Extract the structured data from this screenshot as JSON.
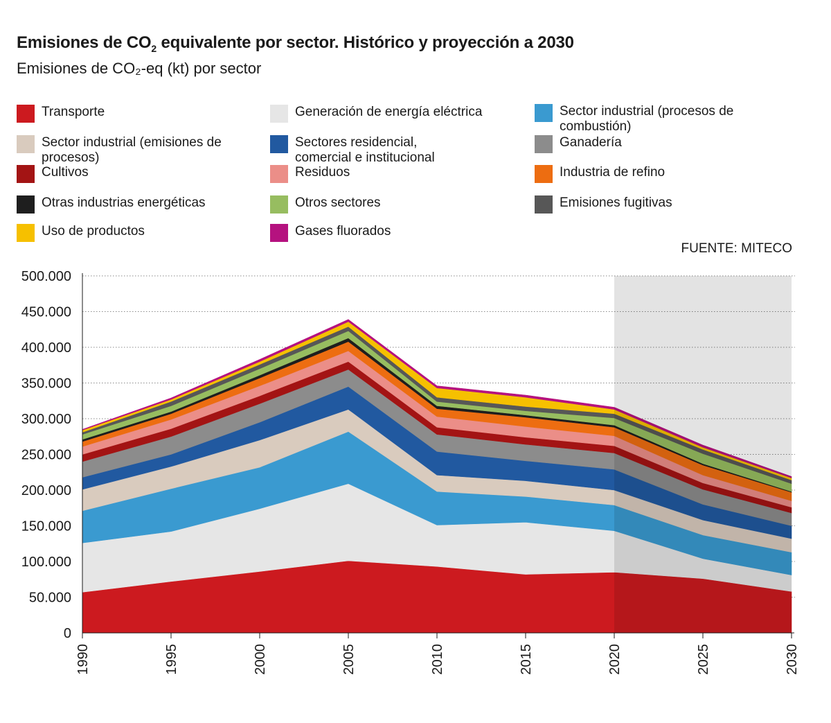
{
  "header": {
    "title_main": "Emisiones de CO",
    "title_sub": "2",
    "title_rest": " equivalente por sector. Histórico y proyección a 2030",
    "subtitle": "Emisiones de CO₂-eq (kt) por sector",
    "source": "FUENTE: MITECO"
  },
  "chart_data": {
    "type": "area",
    "stacked": true,
    "title": "Emisiones de CO2 equivalente por sector. Histórico y proyección a 2030",
    "subtitle": "Emisiones de CO₂-eq (kt) por sector",
    "x": [
      1990,
      1995,
      2000,
      2005,
      2010,
      2015,
      2020,
      2025,
      2030
    ],
    "x_tick_labels": [
      "1990",
      "1995",
      "2000",
      "2005",
      "2010",
      "2015",
      "2020",
      "2025",
      "2030"
    ],
    "y_tick_labels": [
      "0",
      "50.000",
      "100.000",
      "150.000",
      "200.000",
      "250.000",
      "300.000",
      "350.000",
      "400.000",
      "450.000",
      "500.000"
    ],
    "ylim": [
      0,
      500000
    ],
    "projection_from": 2020,
    "grid": "horizontal dotted",
    "legend_position": "top",
    "series": [
      {
        "name": "Transporte",
        "color": "#cc1a1f",
        "values": [
          57000,
          72000,
          86000,
          101000,
          93000,
          82000,
          85000,
          76000,
          58000
        ]
      },
      {
        "name": "Generación de energía eléctrica",
        "color": "#e6e6e6",
        "values": [
          69000,
          70000,
          88000,
          108000,
          58000,
          73000,
          58000,
          28000,
          23000
        ]
      },
      {
        "name": "Sector industrial (procesos de combustión)",
        "color": "#3a9ad0",
        "values": [
          45000,
          60000,
          58000,
          73000,
          47000,
          36000,
          36000,
          33000,
          32000
        ]
      },
      {
        "name": "Sector industrial (emisiones de procesos)",
        "color": "#d9cbbe",
        "values": [
          30000,
          31000,
          38000,
          31000,
          23000,
          22000,
          21000,
          21000,
          19000
        ]
      },
      {
        "name": "Sectores residencial, comercial e institucional",
        "color": "#2159a0",
        "values": [
          17000,
          17000,
          25000,
          32000,
          33000,
          28000,
          29000,
          22000,
          18000
        ]
      },
      {
        "name": "Ganadería",
        "color": "#8c8c8c",
        "values": [
          22000,
          25000,
          26000,
          24000,
          24000,
          23000,
          23000,
          21000,
          18000
        ]
      },
      {
        "name": "Cultivos",
        "color": "#a31414",
        "values": [
          10000,
          11000,
          11000,
          11000,
          10000,
          10000,
          10000,
          9000,
          8000
        ]
      },
      {
        "name": "Residuos",
        "color": "#eb8e88",
        "values": [
          11000,
          13000,
          14000,
          15000,
          15000,
          15000,
          14000,
          11000,
          9000
        ]
      },
      {
        "name": "Industria de refino",
        "color": "#ed6d11",
        "values": [
          7000,
          8000,
          11000,
          13000,
          11000,
          13000,
          12000,
          14000,
          12000
        ]
      },
      {
        "name": "Otras industrias energéticas",
        "color": "#1e1e1e",
        "values": [
          3000,
          3000,
          4000,
          5000,
          4000,
          3000,
          3000,
          2000,
          1000
        ]
      },
      {
        "name": "Otros sectores",
        "color": "#97bd60",
        "values": [
          7000,
          8000,
          9000,
          10000,
          6000,
          6000,
          10000,
          14000,
          11000
        ]
      },
      {
        "name": "Emisiones fugitivas",
        "color": "#575757",
        "values": [
          3000,
          6000,
          6000,
          6000,
          6000,
          6000,
          6000,
          6000,
          5000
        ]
      },
      {
        "name": "Uso de productos",
        "color": "#f6c000",
        "values": [
          3000,
          3000,
          4000,
          7000,
          13000,
          13000,
          6000,
          3000,
          3000
        ]
      },
      {
        "name": "Gases fluorados",
        "color": "#b5127f",
        "values": [
          1000,
          2000,
          3000,
          3000,
          3000,
          3000,
          3000,
          3000,
          2000
        ]
      }
    ]
  }
}
